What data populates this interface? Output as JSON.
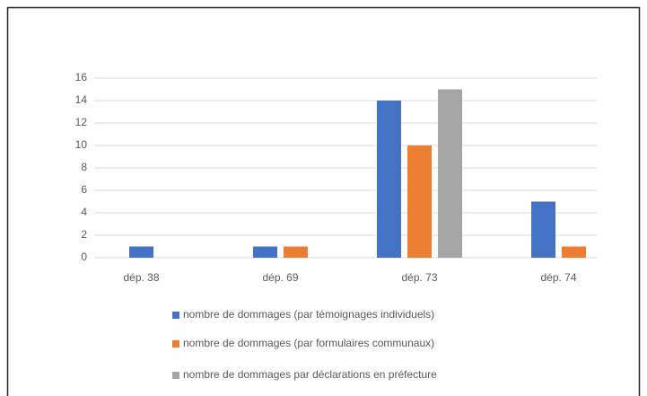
{
  "chart_data": {
    "type": "bar",
    "categories": [
      "dép. 38",
      "dép. 69",
      "dép. 73",
      "dép. 74"
    ],
    "series": [
      {
        "name": "nombre de dommages (par témoignages individuels)",
        "color": "#4472c4",
        "values": [
          1,
          1,
          14,
          5
        ]
      },
      {
        "name": "nombre de dommages (par formulaires communaux)",
        "color": "#ed7d31",
        "values": [
          null,
          1,
          10,
          1
        ]
      },
      {
        "name": "nombre de dommages par déclarations en préfecture",
        "color": "#a5a5a5",
        "values": [
          null,
          null,
          15,
          null
        ]
      }
    ],
    "ylim": [
      0,
      16
    ],
    "yticks": [
      0,
      2,
      4,
      6,
      8,
      10,
      12,
      14,
      16
    ],
    "grid": true,
    "legend": "bottom"
  }
}
